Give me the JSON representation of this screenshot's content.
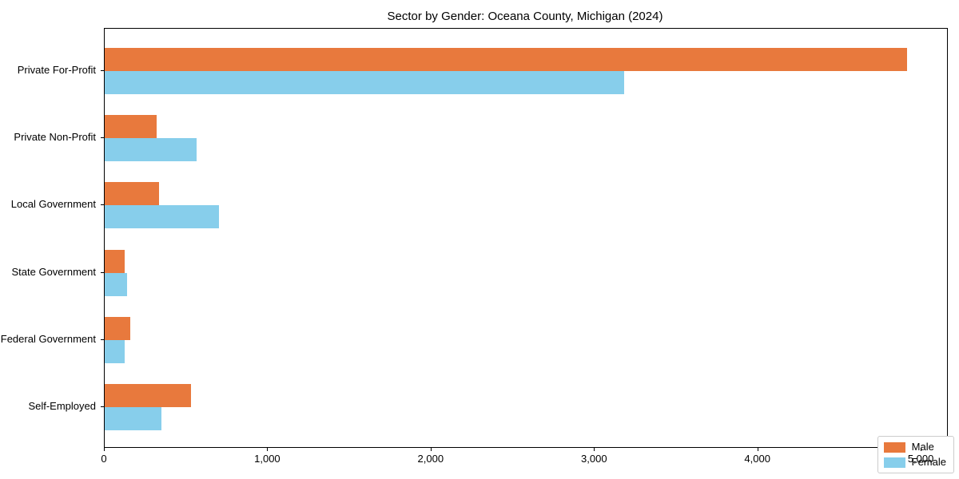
{
  "chart_data": {
    "type": "bar",
    "orientation": "horizontal",
    "title": "Sector by Gender: Oceana County, Michigan (2024)",
    "categories": [
      "Private For-Profit",
      "Private Non-Profit",
      "Local Government",
      "State Government",
      "Federal Government",
      "Self-Employed"
    ],
    "series": [
      {
        "name": "Male",
        "color": "#e8793d",
        "values": [
          4910,
          320,
          330,
          120,
          155,
          530
        ]
      },
      {
        "name": "Female",
        "color": "#87ceeb",
        "values": [
          3180,
          560,
          700,
          135,
          120,
          345
        ]
      }
    ],
    "xlabel": "",
    "ylabel": "",
    "xlim": [
      0,
      5156
    ],
    "x_ticks": [
      0,
      1000,
      2000,
      3000,
      4000,
      5000
    ],
    "x_tick_labels": [
      "0",
      "1,000",
      "2,000",
      "3,000",
      "4,000",
      "5,000"
    ],
    "grid": false,
    "legend": {
      "position": "lower right"
    },
    "colors": {
      "male": "#e8793d",
      "female": "#87ceeb",
      "spine": "#000000",
      "background": "#ffffff"
    }
  }
}
